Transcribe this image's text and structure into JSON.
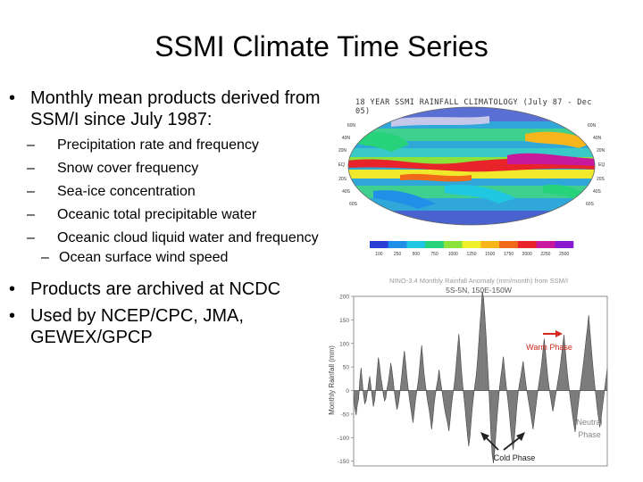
{
  "slide": {
    "title": "SSMI Climate Time Series",
    "bullets": [
      {
        "text": "Monthly mean products derived from SSM/I since July 1987:"
      },
      {
        "text": "Products are archived at NCDC"
      },
      {
        "text": "Used by NCEP/CPC, JMA, GEWEX/GPCP"
      }
    ],
    "sub_bullets": [
      "Precipitation rate and frequency",
      "Snow cover frequency",
      "Sea-ice concentration",
      "Oceanic total precipitable water",
      "Oceanic cloud liquid water and frequency",
      "Ocean surface wind speed"
    ],
    "bullet_glyph": "•",
    "dash_glyph": "–"
  },
  "map_figure": {
    "caption": "18 YEAR SSMI RAINFALL CLIMATOLOGY (July 87 - Dec 05)",
    "latitude_labels": [
      "60N",
      "40N",
      "20N",
      "EQ",
      "20S",
      "40S",
      "60S"
    ],
    "colorbar_labels": [
      "100",
      "250",
      "500",
      "750",
      "1000",
      "1250",
      "1500",
      "1750",
      "2000",
      "2250",
      "2500"
    ],
    "colorbar_colors": [
      "#2b3fd6",
      "#1f8fe8",
      "#1fc7e0",
      "#26d37a",
      "#8be23a",
      "#f0f02a",
      "#f7b51c",
      "#f06a1a",
      "#e8232a",
      "#c8189c",
      "#8a1ad0"
    ]
  },
  "chart_figure": {
    "header_line1": "NINO-3.4 Monthly Rainfall Anomaly (mm/month) from SSM/I",
    "header_line2": "5S-5N, 150E-150W",
    "ylabel": "Monthly Rainfall (mm)",
    "y_ticks": [
      "200",
      "150",
      "100",
      "50",
      "0",
      "-50",
      "-100",
      "-150"
    ],
    "annotations": {
      "warm": "Warm Phase",
      "neutral_line1": "Neutral",
      "neutral_line2": "Phase",
      "cold": "Cold Phase"
    },
    "colors": {
      "fill": "#7a7a7a",
      "warm": "#d6281e",
      "arrow": "#222222"
    }
  },
  "chart_data": {
    "type": "area",
    "title": "NINO-3.4 Monthly Rainfall Anomaly (mm/month) from SSM/I",
    "subtitle": "5S-5N, 150E-150W",
    "xlabel": "",
    "ylabel": "Monthly Rainfall (mm)",
    "ylim": [
      -160,
      200
    ],
    "grid": false,
    "series": [
      {
        "values": [
          -12,
          -38,
          -52,
          -30,
          -18,
          22,
          48,
          18,
          -10,
          -28,
          -22,
          -5,
          14,
          30,
          8,
          -14,
          -34,
          -20,
          6,
          40,
          70,
          52,
          28,
          12,
          -8,
          -22,
          -16,
          4,
          18,
          36,
          58,
          42,
          20,
          -4,
          -24,
          -40,
          -30,
          -12,
          10,
          34,
          62,
          84,
          60,
          30,
          6,
          -16,
          -34,
          -52,
          -68,
          -44,
          -20,
          -2,
          16,
          38,
          70,
          96,
          64,
          34,
          12,
          -8,
          -26,
          -40,
          -60,
          -82,
          -60,
          -30,
          -10,
          8,
          22,
          44,
          24,
          6,
          -12,
          -30,
          -46,
          -58,
          -70,
          -86,
          -62,
          -34,
          -12,
          6,
          28,
          58,
          90,
          120,
          88,
          48,
          16,
          -10,
          -36,
          -66,
          -94,
          -118,
          -98,
          -64,
          -34,
          -10,
          12,
          30,
          60,
          96,
          136,
          170,
          210,
          196,
          160,
          118,
          70,
          20,
          -36,
          -96,
          -136,
          -154,
          -128,
          -90,
          -54,
          -22,
          8,
          30,
          50,
          72,
          44,
          18,
          -6,
          -28,
          -54,
          -84,
          -110,
          -126,
          -98,
          -64,
          -30,
          -4,
          14,
          28,
          46,
          62,
          40,
          18,
          0,
          -16,
          -32,
          -48,
          -66,
          -82,
          -62,
          -40,
          -18,
          2,
          20,
          38,
          58,
          84,
          110,
          84,
          54,
          26,
          6,
          -12,
          -28,
          -44,
          -30,
          -14,
          2,
          18,
          34,
          52,
          74,
          96,
          118,
          88,
          58,
          30,
          8,
          -14,
          -34,
          -54,
          -72,
          -88,
          -66,
          -42,
          -20,
          2,
          22,
          42,
          64,
          88,
          112,
          134,
          160,
          126,
          94,
          62,
          34,
          8,
          -16,
          -40,
          -60,
          -78,
          -60,
          -38,
          -16,
          6,
          26,
          46
        ]
      }
    ]
  }
}
